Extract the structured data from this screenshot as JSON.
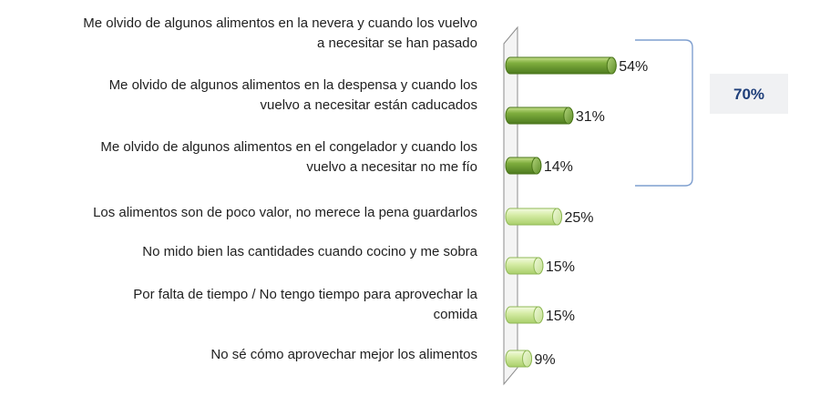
{
  "chart_data": {
    "type": "bar",
    "orientation": "horizontal",
    "categories": [
      [
        "Me olvido de algunos alimentos en la nevera y cuando los vuelvo",
        "a necesitar se han pasado"
      ],
      [
        "Me olvido de algunos alimentos en la despensa y cuando los",
        "vuelvo a necesitar están caducados"
      ],
      [
        "Me olvido de algunos alimentos en el congelador y cuando los",
        "vuelvo a necesitar no me fío"
      ],
      [
        "Los alimentos son de poco valor, no merece la pena guardarlos"
      ],
      [
        "No mido bien las cantidades cuando cocino y me sobra"
      ],
      [
        "Por falta de tiempo / No tengo tiempo para aprovechar la",
        "comida"
      ],
      [
        "No sé cómo aprovechar mejor los alimentos"
      ]
    ],
    "values": [
      54,
      31,
      14,
      25,
      15,
      15,
      9
    ],
    "value_labels": [
      "54%",
      "31%",
      "14%",
      "25%",
      "15%",
      "15%",
      "9%"
    ],
    "bar_colors": [
      "#6a9c32",
      "#6a9c32",
      "#6a9c32",
      "#d3eca0",
      "#d3eca0",
      "#d3eca0",
      "#d3eca0"
    ],
    "grouped_total": {
      "label": "70%",
      "applies_to": [
        0,
        1,
        2
      ]
    },
    "legend": "none",
    "grid": false
  }
}
